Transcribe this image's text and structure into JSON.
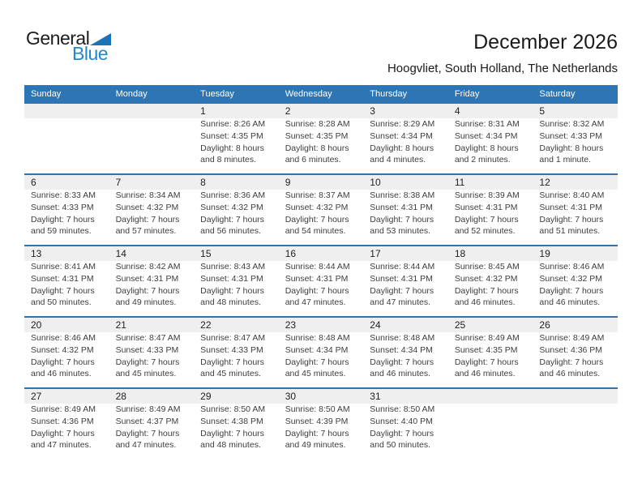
{
  "logo": {
    "line1": "General",
    "line2": "Blue"
  },
  "header": {
    "title": "December 2026",
    "subtitle": "Hoogvliet, South Holland, The Netherlands"
  },
  "colors": {
    "header_blue": "#2e75b5",
    "band_gray": "#efefef",
    "logo_black": "#1c1c1c",
    "logo_blue": "#2088cc",
    "triangle_blue": "#1e73b8"
  },
  "calendar": {
    "weekdays": [
      "Sunday",
      "Monday",
      "Tuesday",
      "Wednesday",
      "Thursday",
      "Friday",
      "Saturday"
    ],
    "weeks": [
      [
        {
          "day": "",
          "lines": []
        },
        {
          "day": "",
          "lines": []
        },
        {
          "day": "1",
          "lines": [
            "Sunrise: 8:26 AM",
            "Sunset: 4:35 PM",
            "Daylight: 8 hours",
            "and 8 minutes."
          ]
        },
        {
          "day": "2",
          "lines": [
            "Sunrise: 8:28 AM",
            "Sunset: 4:35 PM",
            "Daylight: 8 hours",
            "and 6 minutes."
          ]
        },
        {
          "day": "3",
          "lines": [
            "Sunrise: 8:29 AM",
            "Sunset: 4:34 PM",
            "Daylight: 8 hours",
            "and 4 minutes."
          ]
        },
        {
          "day": "4",
          "lines": [
            "Sunrise: 8:31 AM",
            "Sunset: 4:34 PM",
            "Daylight: 8 hours",
            "and 2 minutes."
          ]
        },
        {
          "day": "5",
          "lines": [
            "Sunrise: 8:32 AM",
            "Sunset: 4:33 PM",
            "Daylight: 8 hours",
            "and 1 minute."
          ]
        }
      ],
      [
        {
          "day": "6",
          "lines": [
            "Sunrise: 8:33 AM",
            "Sunset: 4:33 PM",
            "Daylight: 7 hours",
            "and 59 minutes."
          ]
        },
        {
          "day": "7",
          "lines": [
            "Sunrise: 8:34 AM",
            "Sunset: 4:32 PM",
            "Daylight: 7 hours",
            "and 57 minutes."
          ]
        },
        {
          "day": "8",
          "lines": [
            "Sunrise: 8:36 AM",
            "Sunset: 4:32 PM",
            "Daylight: 7 hours",
            "and 56 minutes."
          ]
        },
        {
          "day": "9",
          "lines": [
            "Sunrise: 8:37 AM",
            "Sunset: 4:32 PM",
            "Daylight: 7 hours",
            "and 54 minutes."
          ]
        },
        {
          "day": "10",
          "lines": [
            "Sunrise: 8:38 AM",
            "Sunset: 4:31 PM",
            "Daylight: 7 hours",
            "and 53 minutes."
          ]
        },
        {
          "day": "11",
          "lines": [
            "Sunrise: 8:39 AM",
            "Sunset: 4:31 PM",
            "Daylight: 7 hours",
            "and 52 minutes."
          ]
        },
        {
          "day": "12",
          "lines": [
            "Sunrise: 8:40 AM",
            "Sunset: 4:31 PM",
            "Daylight: 7 hours",
            "and 51 minutes."
          ]
        }
      ],
      [
        {
          "day": "13",
          "lines": [
            "Sunrise: 8:41 AM",
            "Sunset: 4:31 PM",
            "Daylight: 7 hours",
            "and 50 minutes."
          ]
        },
        {
          "day": "14",
          "lines": [
            "Sunrise: 8:42 AM",
            "Sunset: 4:31 PM",
            "Daylight: 7 hours",
            "and 49 minutes."
          ]
        },
        {
          "day": "15",
          "lines": [
            "Sunrise: 8:43 AM",
            "Sunset: 4:31 PM",
            "Daylight: 7 hours",
            "and 48 minutes."
          ]
        },
        {
          "day": "16",
          "lines": [
            "Sunrise: 8:44 AM",
            "Sunset: 4:31 PM",
            "Daylight: 7 hours",
            "and 47 minutes."
          ]
        },
        {
          "day": "17",
          "lines": [
            "Sunrise: 8:44 AM",
            "Sunset: 4:31 PM",
            "Daylight: 7 hours",
            "and 47 minutes."
          ]
        },
        {
          "day": "18",
          "lines": [
            "Sunrise: 8:45 AM",
            "Sunset: 4:32 PM",
            "Daylight: 7 hours",
            "and 46 minutes."
          ]
        },
        {
          "day": "19",
          "lines": [
            "Sunrise: 8:46 AM",
            "Sunset: 4:32 PM",
            "Daylight: 7 hours",
            "and 46 minutes."
          ]
        }
      ],
      [
        {
          "day": "20",
          "lines": [
            "Sunrise: 8:46 AM",
            "Sunset: 4:32 PM",
            "Daylight: 7 hours",
            "and 46 minutes."
          ]
        },
        {
          "day": "21",
          "lines": [
            "Sunrise: 8:47 AM",
            "Sunset: 4:33 PM",
            "Daylight: 7 hours",
            "and 45 minutes."
          ]
        },
        {
          "day": "22",
          "lines": [
            "Sunrise: 8:47 AM",
            "Sunset: 4:33 PM",
            "Daylight: 7 hours",
            "and 45 minutes."
          ]
        },
        {
          "day": "23",
          "lines": [
            "Sunrise: 8:48 AM",
            "Sunset: 4:34 PM",
            "Daylight: 7 hours",
            "and 45 minutes."
          ]
        },
        {
          "day": "24",
          "lines": [
            "Sunrise: 8:48 AM",
            "Sunset: 4:34 PM",
            "Daylight: 7 hours",
            "and 46 minutes."
          ]
        },
        {
          "day": "25",
          "lines": [
            "Sunrise: 8:49 AM",
            "Sunset: 4:35 PM",
            "Daylight: 7 hours",
            "and 46 minutes."
          ]
        },
        {
          "day": "26",
          "lines": [
            "Sunrise: 8:49 AM",
            "Sunset: 4:36 PM",
            "Daylight: 7 hours",
            "and 46 minutes."
          ]
        }
      ],
      [
        {
          "day": "27",
          "lines": [
            "Sunrise: 8:49 AM",
            "Sunset: 4:36 PM",
            "Daylight: 7 hours",
            "and 47 minutes."
          ]
        },
        {
          "day": "28",
          "lines": [
            "Sunrise: 8:49 AM",
            "Sunset: 4:37 PM",
            "Daylight: 7 hours",
            "and 47 minutes."
          ]
        },
        {
          "day": "29",
          "lines": [
            "Sunrise: 8:50 AM",
            "Sunset: 4:38 PM",
            "Daylight: 7 hours",
            "and 48 minutes."
          ]
        },
        {
          "day": "30",
          "lines": [
            "Sunrise: 8:50 AM",
            "Sunset: 4:39 PM",
            "Daylight: 7 hours",
            "and 49 minutes."
          ]
        },
        {
          "day": "31",
          "lines": [
            "Sunrise: 8:50 AM",
            "Sunset: 4:40 PM",
            "Daylight: 7 hours",
            "and 50 minutes."
          ]
        },
        {
          "day": "",
          "lines": []
        },
        {
          "day": "",
          "lines": []
        }
      ]
    ]
  }
}
